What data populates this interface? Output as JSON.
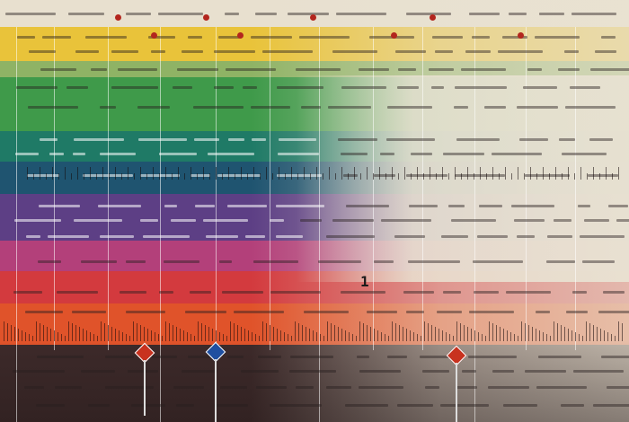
{
  "stray_mark": "1",
  "palette": {
    "paper": "#e9e2d2",
    "red": "#c8321f",
    "orange": "#e2621f",
    "amber": "#eaa31f",
    "yellow": "#e6c32a",
    "green": "#5c9a3a",
    "teal": "#1e7a63",
    "blue": "#1f4f6d",
    "violet": "#6a3a82",
    "magenta": "#c73b6a",
    "dark": "#3a2a2a"
  },
  "bands": [
    {
      "color": "#e8e0cf"
    },
    {
      "color": "#e9c33a"
    },
    {
      "color": "#8fb365"
    },
    {
      "color": "#3f9a4a"
    },
    {
      "color": "#1f7a66"
    },
    {
      "color": "#1f5470"
    },
    {
      "color": "#5d3f85"
    },
    {
      "color": "#b3407a"
    },
    {
      "color": "#d33a3e"
    },
    {
      "color": "#e0532a"
    },
    {
      "color": "#d24b27"
    },
    {
      "color": "#3d2a2a"
    }
  ],
  "pins": [
    {
      "color": "#c8321f"
    },
    {
      "color": "#1f4fa0"
    },
    {
      "color": "#c8321f"
    }
  ]
}
